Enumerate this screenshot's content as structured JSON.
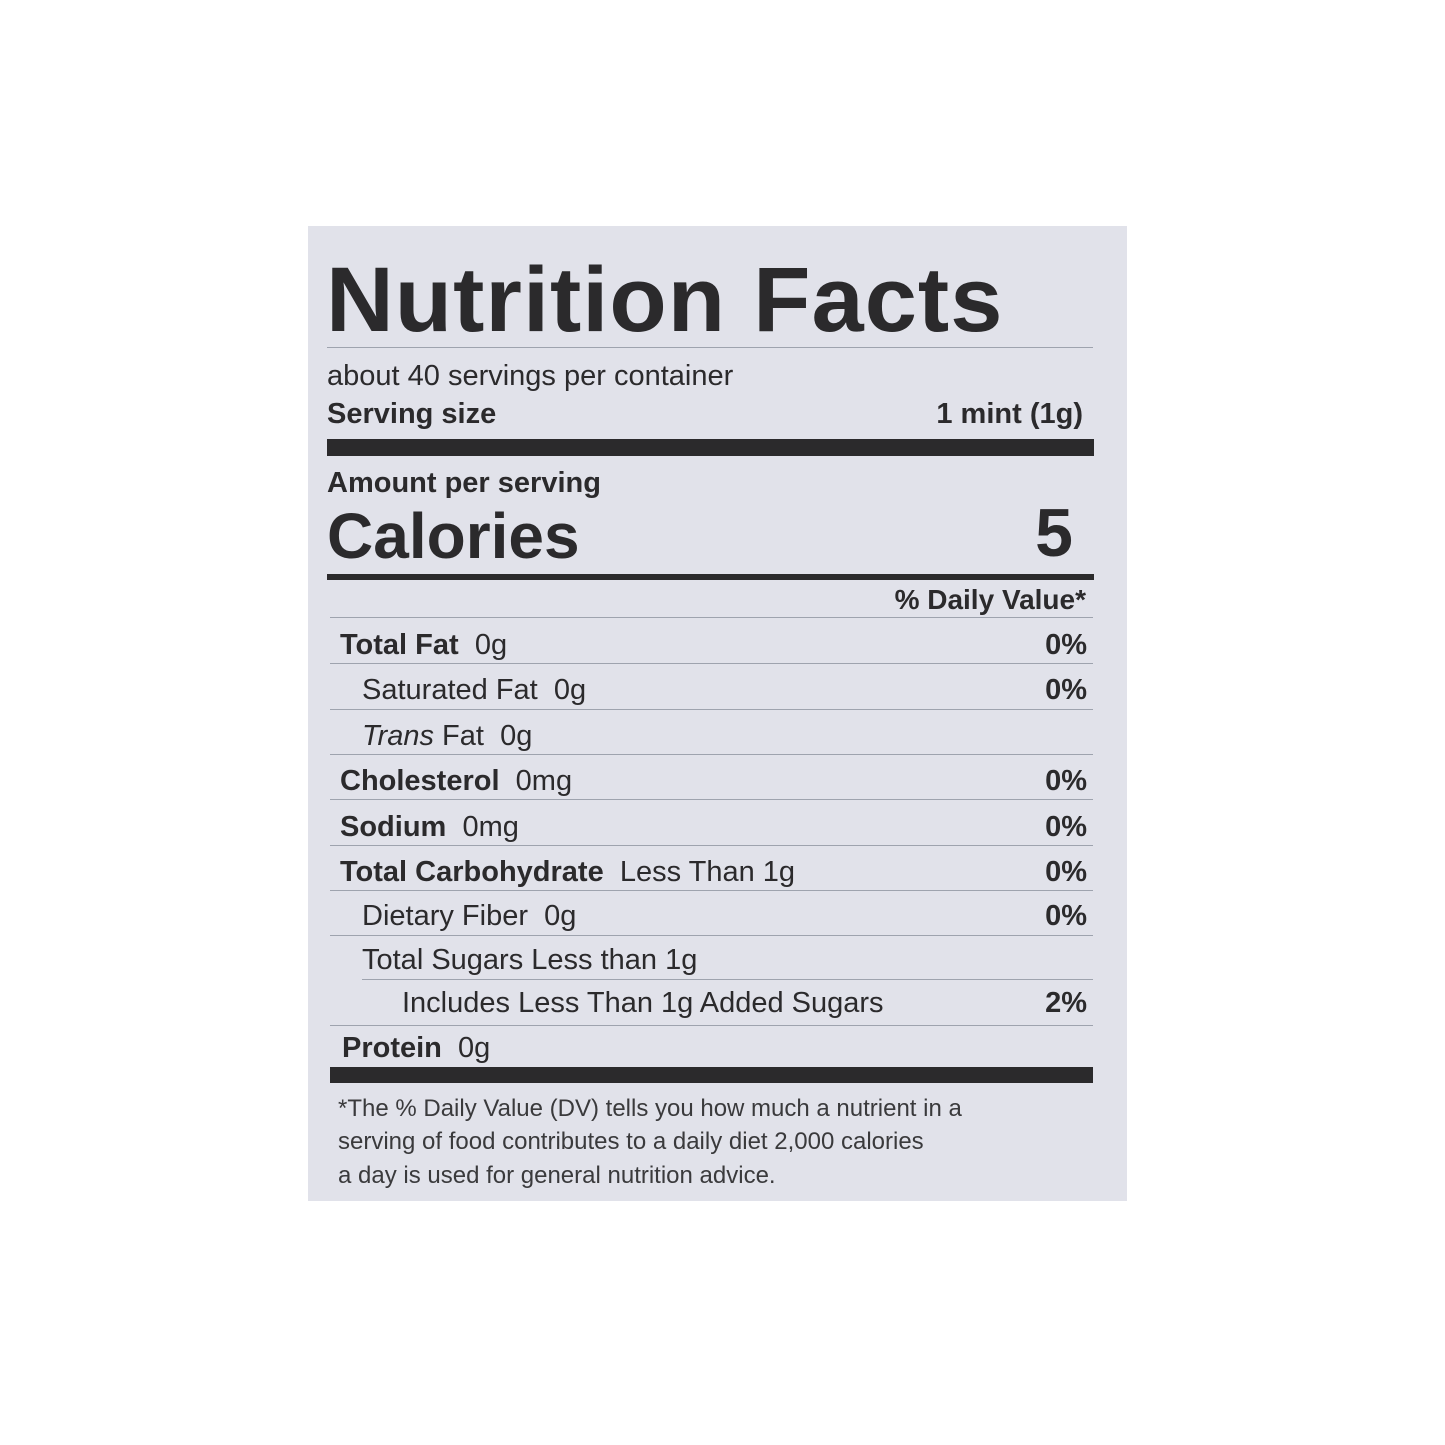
{
  "label": {
    "title": "Nutrition Facts",
    "servings_per_container": "about 40 servings per container",
    "serving_size_label": "Serving size",
    "serving_size_value": "1 mint (1g)",
    "amount_per_serving": "Amount per serving",
    "calories_label": "Calories",
    "calories_value": "5",
    "daily_value_header": "% Daily Value*",
    "rows": [
      {
        "name": "Total Fat",
        "amount": "0g",
        "dv": "0%"
      },
      {
        "name": "Saturated Fat",
        "amount": "0g",
        "dv": "0%"
      },
      {
        "name_italic": "Trans",
        "name": "Fat",
        "amount": "0g"
      },
      {
        "name": "Cholesterol",
        "amount": "0mg",
        "dv": "0%"
      },
      {
        "name": "Sodium",
        "amount": "0mg",
        "dv": "0%"
      },
      {
        "name": "Total Carbohydrate",
        "amount": "Less Than 1g",
        "dv": "0%"
      },
      {
        "name": "Dietary Fiber",
        "amount": "0g",
        "dv": "0%"
      },
      {
        "name": "Total Sugars Less than 1g"
      },
      {
        "name": "Includes Less Than 1g Added Sugars",
        "dv": "2%"
      },
      {
        "name": "Protein",
        "amount": "0g"
      }
    ],
    "footnote": [
      "*The % Daily Value (DV) tells you how much a nutrient in a",
      "serving of food contributes to a daily diet 2,000 calories",
      "a day is used for general nutrition advice."
    ]
  },
  "colors": {
    "panel": "#e1e2ea",
    "ink": "#2b2a2c"
  }
}
